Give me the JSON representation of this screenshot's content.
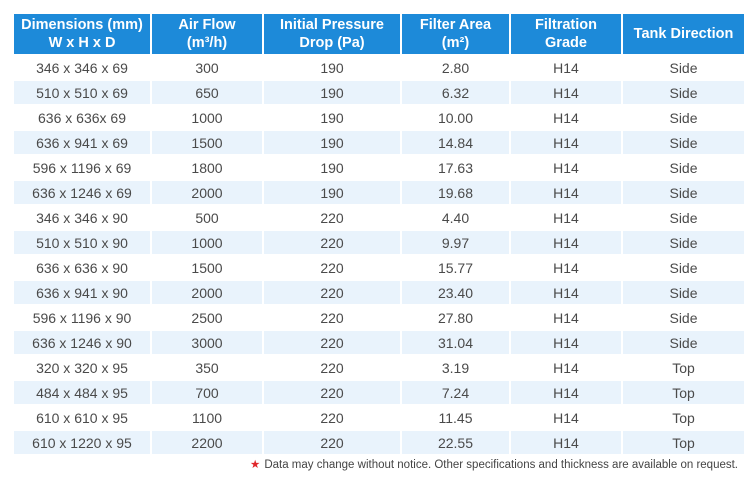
{
  "headers": [
    {
      "line1": "Dimensions  (mm)",
      "line2": "W x H x D"
    },
    {
      "line1": "Air Flow",
      "line2": "(m³/h)"
    },
    {
      "line1": "Initial Pressure",
      "line2": "Drop (Pa)"
    },
    {
      "line1": "Filter Area",
      "line2": "(m²)"
    },
    {
      "line1": "Filtration",
      "line2": "Grade"
    },
    {
      "line1": "Tank Direction",
      "line2": ""
    }
  ],
  "rows": [
    [
      "346 x 346 x 69",
      "300",
      "190",
      "2.80",
      "H14",
      "Side"
    ],
    [
      "510 x 510 x 69",
      "650",
      "190",
      "6.32",
      "H14",
      "Side"
    ],
    [
      "636 x 636x 69",
      "1000",
      "190",
      "10.00",
      "H14",
      "Side"
    ],
    [
      "636 x 941 x 69",
      "1500",
      "190",
      "14.84",
      "H14",
      "Side"
    ],
    [
      "596 x 1196 x 69",
      "1800",
      "190",
      "17.63",
      "H14",
      "Side"
    ],
    [
      "636 x 1246 x 69",
      "2000",
      "190",
      "19.68",
      "H14",
      "Side"
    ],
    [
      "346 x 346 x 90",
      "500",
      "220",
      "4.40",
      "H14",
      "Side"
    ],
    [
      "510 x 510 x 90",
      "1000",
      "220",
      "9.97",
      "H14",
      "Side"
    ],
    [
      "636 x 636 x 90",
      "1500",
      "220",
      "15.77",
      "H14",
      "Side"
    ],
    [
      "636 x 941 x 90",
      "2000",
      "220",
      "23.40",
      "H14",
      "Side"
    ],
    [
      "596 x 1196 x 90",
      "2500",
      "220",
      "27.80",
      "H14",
      "Side"
    ],
    [
      "636 x 1246 x 90",
      "3000",
      "220",
      "31.04",
      "H14",
      "Side"
    ],
    [
      "320 x 320 x 95",
      "350",
      "220",
      "3.19",
      "H14",
      "Top"
    ],
    [
      "484 x 484 x 95",
      "700",
      "220",
      "7.24",
      "H14",
      "Top"
    ],
    [
      "610 x 610 x 95",
      "1100",
      "220",
      "11.45",
      "H14",
      "Top"
    ],
    [
      "610 x 1220 x 95",
      "2200",
      "220",
      "22.55",
      "H14",
      "Top"
    ]
  ],
  "footnote": {
    "marker": "★",
    "text": "Data may change without notice. Other specifications and thickness are available on request."
  },
  "colors": {
    "header_bg": "#1d8ad9",
    "stripe_bg": "#e9f3fc",
    "footnote_marker": "#e0262a"
  }
}
